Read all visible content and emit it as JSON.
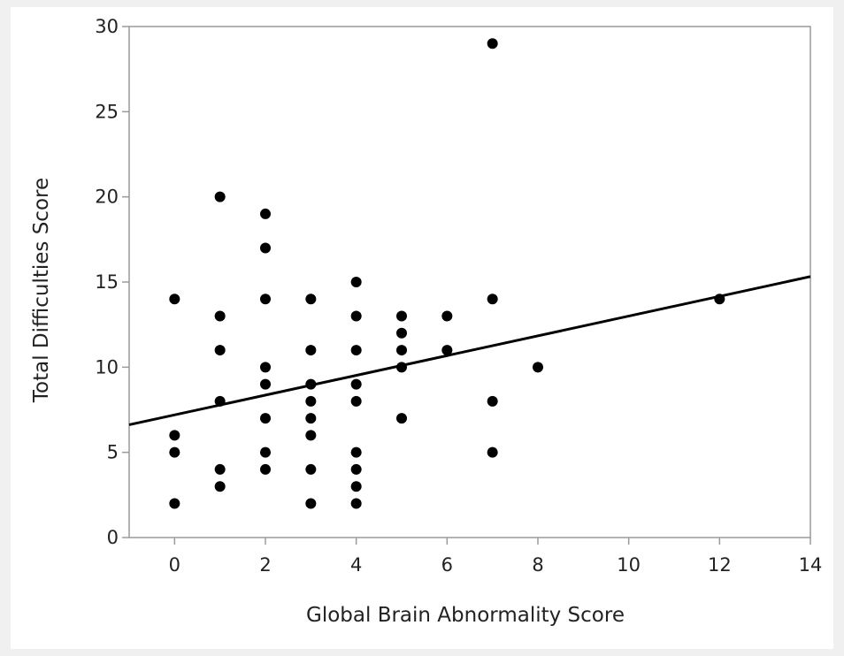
{
  "chart_data": {
    "type": "scatter",
    "xlabel": "Global Brain Abnormality Score",
    "ylabel": "Total Difficulties Score",
    "xlim": [
      -1,
      14
    ],
    "ylim": [
      0,
      30
    ],
    "x_ticks": [
      0,
      2,
      4,
      6,
      8,
      10,
      12,
      14
    ],
    "y_ticks": [
      0,
      5,
      10,
      15,
      20,
      25,
      30
    ],
    "grid": false,
    "points": [
      {
        "x": 0,
        "y": 14
      },
      {
        "x": 0,
        "y": 6
      },
      {
        "x": 0,
        "y": 5
      },
      {
        "x": 0,
        "y": 2
      },
      {
        "x": 1,
        "y": 20
      },
      {
        "x": 1,
        "y": 13
      },
      {
        "x": 1,
        "y": 11
      },
      {
        "x": 1,
        "y": 8
      },
      {
        "x": 1,
        "y": 4
      },
      {
        "x": 1,
        "y": 3
      },
      {
        "x": 2,
        "y": 19
      },
      {
        "x": 2,
        "y": 17
      },
      {
        "x": 2,
        "y": 14
      },
      {
        "x": 2,
        "y": 10
      },
      {
        "x": 2,
        "y": 9
      },
      {
        "x": 2,
        "y": 7
      },
      {
        "x": 2,
        "y": 5
      },
      {
        "x": 2,
        "y": 4
      },
      {
        "x": 3,
        "y": 14
      },
      {
        "x": 3,
        "y": 11
      },
      {
        "x": 3,
        "y": 9
      },
      {
        "x": 3,
        "y": 8
      },
      {
        "x": 3,
        "y": 7
      },
      {
        "x": 3,
        "y": 6
      },
      {
        "x": 3,
        "y": 4
      },
      {
        "x": 3,
        "y": 2
      },
      {
        "x": 4,
        "y": 15
      },
      {
        "x": 4,
        "y": 13
      },
      {
        "x": 4,
        "y": 11
      },
      {
        "x": 4,
        "y": 9
      },
      {
        "x": 4,
        "y": 8
      },
      {
        "x": 4,
        "y": 5
      },
      {
        "x": 4,
        "y": 4
      },
      {
        "x": 4,
        "y": 3
      },
      {
        "x": 4,
        "y": 2
      },
      {
        "x": 5,
        "y": 13
      },
      {
        "x": 5,
        "y": 12
      },
      {
        "x": 5,
        "y": 11
      },
      {
        "x": 5,
        "y": 10
      },
      {
        "x": 5,
        "y": 7
      },
      {
        "x": 6,
        "y": 13
      },
      {
        "x": 6,
        "y": 11
      },
      {
        "x": 7,
        "y": 29
      },
      {
        "x": 7,
        "y": 14
      },
      {
        "x": 7,
        "y": 8
      },
      {
        "x": 7,
        "y": 5
      },
      {
        "x": 8,
        "y": 10
      },
      {
        "x": 12,
        "y": 14
      }
    ],
    "fit_line": {
      "slope": 0.58,
      "intercept": 7.2
    },
    "colors": {
      "points": "#000000",
      "line": "#000000",
      "axis": "#9a9a9a"
    }
  }
}
